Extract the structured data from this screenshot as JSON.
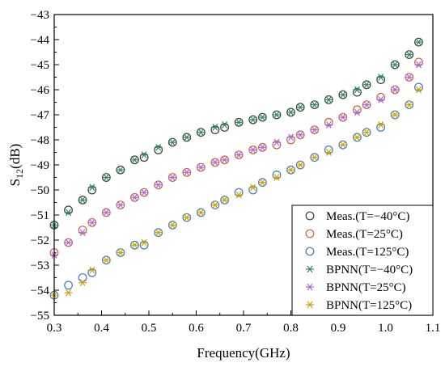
{
  "chart_data": {
    "type": "scatter",
    "xlabel": "Frequency(GHz)",
    "ylabel_main": "S",
    "ylabel_sub": "12",
    "ylabel_tail": "(dB)",
    "xlim": [
      0.3,
      1.1
    ],
    "ylim": [
      -55,
      -43
    ],
    "xticks": [
      "0.3",
      "0.4",
      "0.5",
      "0.6",
      "0.7",
      "0.8",
      "0.9",
      "1.0",
      "1.1"
    ],
    "yticks": [
      "-55",
      "-54",
      "-53",
      "-52",
      "-51",
      "-50",
      "-49",
      "-48",
      "-47",
      "-46",
      "-45",
      "-44",
      "-43"
    ],
    "grid": false,
    "legend_position": "bottom-right",
    "x": [
      0.3,
      0.33,
      0.36,
      0.38,
      0.41,
      0.44,
      0.47,
      0.49,
      0.52,
      0.55,
      0.58,
      0.61,
      0.64,
      0.66,
      0.69,
      0.72,
      0.74,
      0.77,
      0.8,
      0.82,
      0.85,
      0.88,
      0.91,
      0.94,
      0.96,
      0.99,
      1.02,
      1.05,
      1.07
    ],
    "series": [
      {
        "name": "Meas.(T=−40°C)",
        "marker": "circle",
        "color": "#3b3b3b",
        "values": [
          -51.4,
          -50.8,
          -50.4,
          -50.0,
          -49.5,
          -49.2,
          -48.8,
          -48.7,
          -48.4,
          -48.1,
          -47.9,
          -47.7,
          -47.6,
          -47.5,
          -47.3,
          -47.2,
          -47.1,
          -47.0,
          -46.9,
          -46.7,
          -46.6,
          -46.4,
          -46.2,
          -46.1,
          -45.8,
          -45.6,
          -45.0,
          -44.6,
          -44.1
        ]
      },
      {
        "name": "Meas.(T=25°C)",
        "marker": "circle",
        "color": "#c4643c",
        "values": [
          -52.5,
          -52.1,
          -51.6,
          -51.3,
          -50.9,
          -50.6,
          -50.3,
          -50.1,
          -49.8,
          -49.5,
          -49.3,
          -49.1,
          -48.9,
          -48.8,
          -48.6,
          -48.4,
          -48.3,
          -48.2,
          -48.0,
          -47.8,
          -47.6,
          -47.3,
          -47.1,
          -46.8,
          -46.6,
          -46.3,
          -46.0,
          -45.5,
          -44.9
        ]
      },
      {
        "name": "Meas.(T=125°C)",
        "marker": "circle",
        "color": "#3f78c4",
        "values": [
          -54.2,
          -53.8,
          -53.5,
          -53.3,
          -52.8,
          -52.5,
          -52.2,
          -52.2,
          -51.7,
          -51.4,
          -51.1,
          -50.9,
          -50.6,
          -50.4,
          -50.1,
          -50.0,
          -49.7,
          -49.4,
          -49.2,
          -49.0,
          -48.7,
          -48.4,
          -48.2,
          -47.9,
          -47.7,
          -47.5,
          -47.0,
          -46.6,
          -45.9
        ]
      },
      {
        "name": "BPNN(T=−40°C)",
        "marker": "star",
        "color": "#2e8b57",
        "values": [
          -51.4,
          -50.9,
          -50.4,
          -49.9,
          -49.5,
          -49.2,
          -48.8,
          -48.6,
          -48.3,
          -48.1,
          -47.9,
          -47.7,
          -47.5,
          -47.4,
          -47.3,
          -47.2,
          -47.1,
          -47.0,
          -46.9,
          -46.7,
          -46.6,
          -46.4,
          -46.2,
          -46.0,
          -45.8,
          -45.5,
          -45.0,
          -44.6,
          -44.1
        ]
      },
      {
        "name": "BPNN(T=25°C)",
        "marker": "star",
        "color": "#b266d6",
        "values": [
          -52.6,
          -52.1,
          -51.7,
          -51.3,
          -50.9,
          -50.6,
          -50.3,
          -50.1,
          -49.8,
          -49.5,
          -49.3,
          -49.1,
          -48.9,
          -48.8,
          -48.6,
          -48.4,
          -48.3,
          -48.1,
          -47.9,
          -47.8,
          -47.6,
          -47.4,
          -47.1,
          -46.9,
          -46.6,
          -46.4,
          -46.0,
          -45.5,
          -45.0
        ]
      },
      {
        "name": "BPNN(T=125°C)",
        "marker": "star",
        "color": "#c9a10a",
        "values": [
          -54.2,
          -54.1,
          -53.7,
          -53.2,
          -52.8,
          -52.5,
          -52.2,
          -52.1,
          -51.7,
          -51.4,
          -51.1,
          -50.9,
          -50.6,
          -50.4,
          -50.2,
          -49.9,
          -49.7,
          -49.5,
          -49.2,
          -49.0,
          -48.7,
          -48.5,
          -48.2,
          -47.9,
          -47.7,
          -47.4,
          -47.0,
          -46.6,
          -46.0
        ]
      }
    ]
  }
}
